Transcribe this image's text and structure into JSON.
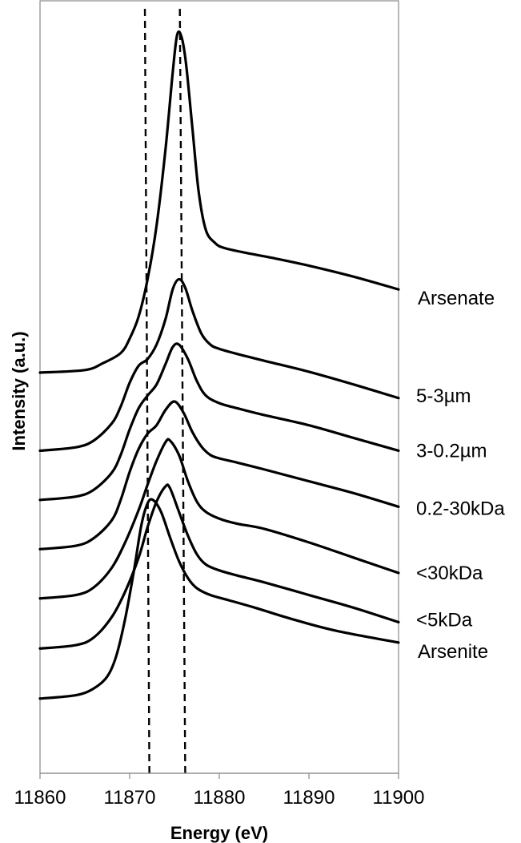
{
  "chart_data": {
    "type": "line",
    "title": "",
    "xlabel": "Energy (eV)",
    "ylabel": "Intensity (a.u.)",
    "xlim": [
      11860,
      11900
    ],
    "x_ticks": [
      "11860",
      "11870",
      "11880",
      "11890",
      "11900"
    ],
    "y_ticks_shown": false,
    "grid": false,
    "legend": "none",
    "plot_style": "stacked spectra, vertically offset, labeled at right end",
    "reference_lines_x": [
      11872.0,
      11875.9
    ],
    "series": [
      {
        "name": "Arsenate",
        "x": [
          11860,
          11865,
          11867,
          11869,
          11870,
          11871,
          11872,
          11873,
          11874,
          11874.8,
          11875.3,
          11875.8,
          11876.3,
          11877,
          11877.7,
          11878.5,
          11879.5,
          11880.5,
          11883,
          11886,
          11890,
          11895,
          11900
        ],
        "y": [
          2.22,
          2.25,
          2.33,
          2.45,
          2.62,
          2.88,
          3.32,
          3.95,
          4.85,
          5.75,
          6.2,
          6.17,
          5.85,
          5.1,
          4.35,
          3.9,
          3.75,
          3.69,
          3.63,
          3.57,
          3.48,
          3.35,
          3.2
        ]
      },
      {
        "name": "5-3µm",
        "x": [
          11860,
          11864,
          11866,
          11868,
          11869,
          11870,
          11871,
          11872,
          11873,
          11874,
          11874.8,
          11875.5,
          11876.2,
          11877,
          11878,
          11879,
          11880,
          11882,
          11885,
          11890,
          11895,
          11900
        ],
        "y": [
          1.3,
          1.34,
          1.42,
          1.62,
          1.82,
          2.1,
          2.3,
          2.38,
          2.55,
          2.85,
          3.2,
          3.32,
          3.22,
          2.95,
          2.68,
          2.55,
          2.5,
          2.44,
          2.36,
          2.23,
          2.08,
          1.92
        ]
      },
      {
        "name": "3-0.2µm",
        "x": [
          11860,
          11864,
          11866,
          11868,
          11869,
          11870,
          11871,
          11872,
          11873,
          11874,
          11874.8,
          11875.5,
          11876.5,
          11877.5,
          11878.5,
          11880,
          11882,
          11885,
          11890,
          11895,
          11900
        ],
        "y": [
          0.72,
          0.76,
          0.84,
          1.04,
          1.25,
          1.55,
          1.8,
          1.95,
          2.08,
          2.32,
          2.52,
          2.55,
          2.38,
          2.12,
          1.95,
          1.86,
          1.8,
          1.72,
          1.6,
          1.45,
          1.3
        ]
      },
      {
        "name": "0.2-30kDa",
        "x": [
          11860,
          11864,
          11866,
          11868,
          11869,
          11870,
          11871,
          11872,
          11873,
          11874,
          11875,
          11876,
          11877,
          11878,
          11879,
          11880,
          11882,
          11885,
          11890,
          11895,
          11900
        ],
        "y": [
          0.14,
          0.18,
          0.27,
          0.48,
          0.72,
          1.05,
          1.32,
          1.5,
          1.6,
          1.78,
          1.88,
          1.75,
          1.52,
          1.35,
          1.25,
          1.21,
          1.16,
          1.08,
          0.94,
          0.8,
          0.64
        ]
      },
      {
        "name": "<30kDa",
        "x": [
          11860,
          11864,
          11866,
          11868,
          11869.5,
          11871,
          11872,
          11873,
          11874,
          11874.5,
          11875.5,
          11876.5,
          11877.5,
          11878.5,
          11880,
          11882,
          11885,
          11890,
          11895,
          11900
        ],
        "y": [
          -0.44,
          -0.4,
          -0.31,
          -0.08,
          0.22,
          0.6,
          0.9,
          1.18,
          1.4,
          1.42,
          1.25,
          0.94,
          0.7,
          0.58,
          0.5,
          0.44,
          0.38,
          0.22,
          0.04,
          -0.14
        ]
      },
      {
        "name": "<5kDa",
        "x": [
          11860,
          11864,
          11866,
          11868,
          11869.5,
          11871,
          11872,
          11873,
          11874,
          11874.5,
          11875.5,
          11876.5,
          11877.5,
          11878.5,
          11880,
          11882,
          11885,
          11890,
          11895,
          11900
        ],
        "y": [
          -1.03,
          -0.99,
          -0.9,
          -0.66,
          -0.36,
          0.04,
          0.4,
          0.7,
          0.88,
          0.86,
          0.58,
          0.3,
          0.08,
          -0.04,
          -0.11,
          -0.17,
          -0.25,
          -0.4,
          -0.55,
          -0.72
        ]
      },
      {
        "name": "Arsenite",
        "x": [
          11860,
          11864,
          11866,
          11867.5,
          11868.5,
          11869.5,
          11870.5,
          11871.3,
          11872,
          11872.6,
          11873.5,
          11874.5,
          11875.5,
          11876.5,
          11877.5,
          11879,
          11881,
          11884,
          11888,
          11893,
          11900
        ],
        "y": [
          -1.62,
          -1.58,
          -1.5,
          -1.36,
          -1.12,
          -0.68,
          -0.1,
          0.42,
          0.68,
          0.72,
          0.58,
          0.28,
          0.0,
          -0.2,
          -0.32,
          -0.4,
          -0.46,
          -0.55,
          -0.68,
          -0.82,
          -0.96
        ]
      }
    ]
  }
}
